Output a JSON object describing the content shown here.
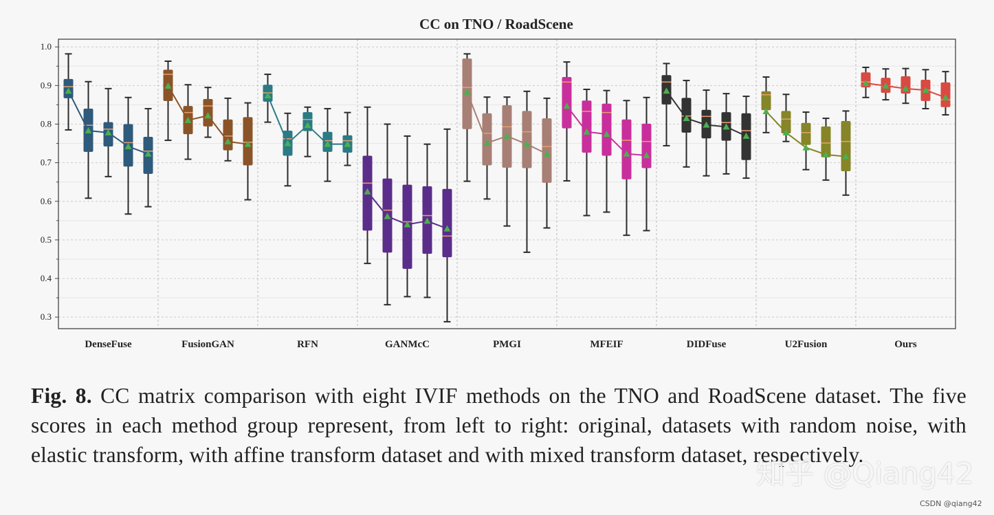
{
  "chart_data": {
    "type": "box",
    "title": "CC on TNO / RoadScene",
    "ylim": [
      0.27,
      1.02
    ],
    "yticks": [
      "0.3",
      "0.4",
      "0.5",
      "0.6",
      "0.7",
      "0.8",
      "0.9",
      "1.0"
    ],
    "grid": true,
    "median_color": "#e8a070",
    "mean_color": "#4caf50",
    "groups": [
      {
        "name": "DenseFuse",
        "color": "#2e5a7c",
        "boxes": [
          {
            "whislo": 0.785,
            "q1": 0.867,
            "med": 0.897,
            "q3": 0.917,
            "whishi": 0.982,
            "mean": 0.886
          },
          {
            "whislo": 0.608,
            "q1": 0.728,
            "med": 0.797,
            "q3": 0.84,
            "whishi": 0.91,
            "mean": 0.783
          },
          {
            "whislo": 0.664,
            "q1": 0.742,
            "med": 0.787,
            "q3": 0.805,
            "whishi": 0.892,
            "mean": 0.778
          },
          {
            "whislo": 0.567,
            "q1": 0.69,
            "med": 0.752,
            "q3": 0.8,
            "whishi": 0.869,
            "mean": 0.742
          },
          {
            "whislo": 0.586,
            "q1": 0.671,
            "med": 0.73,
            "q3": 0.767,
            "whishi": 0.84,
            "mean": 0.723
          }
        ]
      },
      {
        "name": "FusionGAN",
        "color": "#8b5428",
        "boxes": [
          {
            "whislo": 0.758,
            "q1": 0.86,
            "med": 0.929,
            "q3": 0.941,
            "whishi": 0.963,
            "mean": 0.899
          },
          {
            "whislo": 0.709,
            "q1": 0.774,
            "med": 0.83,
            "q3": 0.847,
            "whishi": 0.902,
            "mean": 0.81
          },
          {
            "whislo": 0.766,
            "q1": 0.794,
            "med": 0.847,
            "q3": 0.865,
            "whishi": 0.895,
            "mean": 0.822
          },
          {
            "whislo": 0.705,
            "q1": 0.732,
            "med": 0.769,
            "q3": 0.812,
            "whishi": 0.867,
            "mean": 0.755
          },
          {
            "whislo": 0.604,
            "q1": 0.693,
            "med": 0.753,
            "q3": 0.818,
            "whishi": 0.855,
            "mean": 0.748
          }
        ]
      },
      {
        "name": "RFN",
        "color": "#2a7b85",
        "boxes": [
          {
            "whislo": 0.805,
            "q1": 0.858,
            "med": 0.881,
            "q3": 0.902,
            "whishi": 0.929,
            "mean": 0.874
          },
          {
            "whislo": 0.64,
            "q1": 0.718,
            "med": 0.762,
            "q3": 0.783,
            "whishi": 0.828,
            "mean": 0.75
          },
          {
            "whislo": 0.716,
            "q1": 0.782,
            "med": 0.812,
            "q3": 0.831,
            "whishi": 0.844,
            "mean": 0.797
          },
          {
            "whislo": 0.652,
            "q1": 0.728,
            "med": 0.757,
            "q3": 0.78,
            "whishi": 0.84,
            "mean": 0.748
          },
          {
            "whislo": 0.693,
            "q1": 0.726,
            "med": 0.757,
            "q3": 0.771,
            "whishi": 0.83,
            "mean": 0.748
          }
        ]
      },
      {
        "name": "GANMcC",
        "color": "#5b2d8a",
        "boxes": [
          {
            "whislo": 0.439,
            "q1": 0.524,
            "med": 0.647,
            "q3": 0.718,
            "whishi": 0.844,
            "mean": 0.625
          },
          {
            "whislo": 0.332,
            "q1": 0.467,
            "med": 0.577,
            "q3": 0.659,
            "whishi": 0.8,
            "mean": 0.561
          },
          {
            "whislo": 0.353,
            "q1": 0.425,
            "med": 0.547,
            "q3": 0.643,
            "whishi": 0.769,
            "mean": 0.54
          },
          {
            "whislo": 0.351,
            "q1": 0.464,
            "med": 0.563,
            "q3": 0.639,
            "whishi": 0.748,
            "mean": 0.549
          },
          {
            "whislo": 0.288,
            "q1": 0.455,
            "med": 0.51,
            "q3": 0.632,
            "whishi": 0.787,
            "mean": 0.529
          }
        ]
      },
      {
        "name": "PMGI",
        "color": "#a87f75",
        "boxes": [
          {
            "whislo": 0.652,
            "q1": 0.787,
            "med": 0.895,
            "q3": 0.97,
            "whishi": 0.982,
            "mean": 0.883
          },
          {
            "whislo": 0.606,
            "q1": 0.693,
            "med": 0.776,
            "q3": 0.828,
            "whishi": 0.87,
            "mean": 0.751
          },
          {
            "whislo": 0.536,
            "q1": 0.687,
            "med": 0.793,
            "q3": 0.849,
            "whishi": 0.87,
            "mean": 0.769
          },
          {
            "whislo": 0.468,
            "q1": 0.686,
            "med": 0.78,
            "q3": 0.834,
            "whishi": 0.885,
            "mean": 0.748
          },
          {
            "whislo": 0.531,
            "q1": 0.648,
            "med": 0.742,
            "q3": 0.815,
            "whishi": 0.867,
            "mean": 0.723
          }
        ]
      },
      {
        "name": "MFEIF",
        "color": "#c92f9c",
        "boxes": [
          {
            "whislo": 0.653,
            "q1": 0.789,
            "med": 0.909,
            "q3": 0.922,
            "whishi": 0.961,
            "mean": 0.847
          },
          {
            "whislo": 0.563,
            "q1": 0.726,
            "med": 0.833,
            "q3": 0.861,
            "whishi": 0.89,
            "mean": 0.78
          },
          {
            "whislo": 0.572,
            "q1": 0.718,
            "med": 0.83,
            "q3": 0.853,
            "whishi": 0.887,
            "mean": 0.774
          },
          {
            "whislo": 0.512,
            "q1": 0.657,
            "med": 0.758,
            "q3": 0.812,
            "whishi": 0.861,
            "mean": 0.723
          },
          {
            "whislo": 0.524,
            "q1": 0.686,
            "med": 0.755,
            "q3": 0.801,
            "whishi": 0.869,
            "mean": 0.719
          }
        ]
      },
      {
        "name": "DIDFuse",
        "color": "#333333",
        "boxes": [
          {
            "whislo": 0.744,
            "q1": 0.851,
            "med": 0.909,
            "q3": 0.927,
            "whishi": 0.957,
            "mean": 0.886
          },
          {
            "whislo": 0.689,
            "q1": 0.778,
            "med": 0.821,
            "q3": 0.868,
            "whishi": 0.913,
            "mean": 0.815
          },
          {
            "whislo": 0.666,
            "q1": 0.763,
            "med": 0.82,
            "q3": 0.837,
            "whishi": 0.888,
            "mean": 0.798
          },
          {
            "whislo": 0.671,
            "q1": 0.757,
            "med": 0.804,
            "q3": 0.831,
            "whishi": 0.879,
            "mean": 0.793
          },
          {
            "whislo": 0.66,
            "q1": 0.707,
            "med": 0.783,
            "q3": 0.828,
            "whishi": 0.872,
            "mean": 0.769
          }
        ]
      },
      {
        "name": "U2Fusion",
        "color": "#868528",
        "boxes": [
          {
            "whislo": 0.778,
            "q1": 0.836,
            "med": 0.876,
            "q3": 0.885,
            "whishi": 0.922,
            "mean": 0.833
          },
          {
            "whislo": 0.755,
            "q1": 0.776,
            "med": 0.813,
            "q3": 0.834,
            "whishi": 0.877,
            "mean": 0.778
          },
          {
            "whislo": 0.682,
            "q1": 0.746,
            "med": 0.778,
            "q3": 0.803,
            "whishi": 0.831,
            "mean": 0.739
          },
          {
            "whislo": 0.655,
            "q1": 0.714,
            "med": 0.751,
            "q3": 0.794,
            "whishi": 0.815,
            "mean": 0.721
          },
          {
            "whislo": 0.616,
            "q1": 0.678,
            "med": 0.755,
            "q3": 0.808,
            "whishi": 0.834,
            "mean": 0.716
          }
        ]
      },
      {
        "name": "Ours",
        "color": "#d94a41",
        "boxes": [
          {
            "whislo": 0.869,
            "q1": 0.895,
            "med": 0.909,
            "q3": 0.934,
            "whishi": 0.947,
            "mean": 0.906
          },
          {
            "whislo": 0.863,
            "q1": 0.881,
            "med": 0.899,
            "q3": 0.92,
            "whishi": 0.943,
            "mean": 0.899
          },
          {
            "whislo": 0.854,
            "q1": 0.879,
            "med": 0.892,
            "q3": 0.924,
            "whishi": 0.944,
            "mean": 0.892
          },
          {
            "whislo": 0.84,
            "q1": 0.86,
            "med": 0.888,
            "q3": 0.915,
            "whishi": 0.941,
            "mean": 0.888
          },
          {
            "whislo": 0.824,
            "q1": 0.844,
            "med": 0.863,
            "q3": 0.908,
            "whishi": 0.936,
            "mean": 0.869
          }
        ]
      }
    ]
  },
  "caption": {
    "label": "Fig. 8.",
    "text": " CC matrix comparison with eight IVIF methods on the TNO and RoadScene dataset. The five scores in each method group represent, from left to right: original, datasets with random noise, with elastic transform, with affine transform dataset and with mixed transform dataset, respectively."
  },
  "watermark": "知乎 @Qiang42",
  "source_credit": "CSDN @qiang42"
}
